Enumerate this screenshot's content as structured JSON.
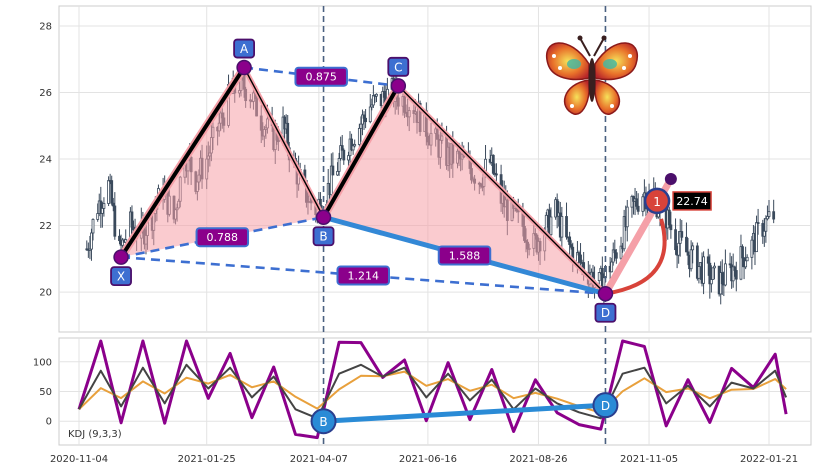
{
  "chart_data": [
    {
      "type": "candlestick",
      "x_tick_labels": [
        "2020-11-04",
        "2021-01-25",
        "2021-04-07",
        "2021-06-16",
        "2021-08-26",
        "2021-11-05",
        "2022-01-21"
      ],
      "y_ticks": [
        20,
        22,
        24,
        26,
        28
      ],
      "ylim": [
        18.8,
        28.6
      ],
      "grid": true,
      "pattern": {
        "points": [
          {
            "name": "X",
            "date": "2020-12-01",
            "value": 21.05
          },
          {
            "name": "A",
            "date": "2021-02-18",
            "value": 26.75
          },
          {
            "name": "B",
            "date": "2021-04-10",
            "value": 22.25
          },
          {
            "name": "C",
            "date": "2021-05-28",
            "value": 26.2
          },
          {
            "name": "D",
            "date": "2021-10-08",
            "value": 19.95
          }
        ],
        "ratios": [
          {
            "label": "0.875",
            "from": "A",
            "to": "C"
          },
          {
            "label": "0.788",
            "from": "X",
            "to": "B"
          },
          {
            "label": "1.214",
            "from": "X",
            "to": "D"
          },
          {
            "label": "1.588",
            "from": "B",
            "to": "D"
          }
        ],
        "target": {
          "marker": "1",
          "value_label": "22.74",
          "date": "2021-11-05",
          "value": 22.74
        },
        "projection_end": {
          "date": "2021-11-19",
          "value": 23.4
        }
      },
      "vertical_markers": [
        "2021-04-10",
        "2021-10-08"
      ],
      "price_path": [
        [
          "2020-11-09",
          21.3
        ],
        [
          "2020-11-16",
          22.6
        ],
        [
          "2020-11-23",
          23.2
        ],
        [
          "2020-11-30",
          21.2
        ],
        [
          "2020-12-07",
          22.0
        ],
        [
          "2020-12-14",
          21.7
        ],
        [
          "2020-12-21",
          22.3
        ],
        [
          "2020-12-28",
          23.1
        ],
        [
          "2021-01-04",
          22.2
        ],
        [
          "2021-01-11",
          24.2
        ],
        [
          "2021-01-18",
          23.4
        ],
        [
          "2021-01-25",
          24.0
        ],
        [
          "2021-02-01",
          24.9
        ],
        [
          "2021-02-08",
          25.8
        ],
        [
          "2021-02-15",
          26.3
        ],
        [
          "2021-02-22",
          26.0
        ],
        [
          "2021-03-01",
          25.2
        ],
        [
          "2021-03-08",
          24.6
        ],
        [
          "2021-03-15",
          25.0
        ],
        [
          "2021-03-22",
          23.8
        ],
        [
          "2021-03-29",
          23.0
        ],
        [
          "2021-04-05",
          22.5
        ],
        [
          "2021-04-12",
          23.0
        ],
        [
          "2021-04-19",
          23.8
        ],
        [
          "2021-04-26",
          24.5
        ],
        [
          "2021-05-03",
          25.0
        ],
        [
          "2021-05-10",
          25.6
        ],
        [
          "2021-05-17",
          25.8
        ],
        [
          "2021-05-24",
          26.0
        ],
        [
          "2021-05-31",
          25.8
        ],
        [
          "2021-06-07",
          25.6
        ],
        [
          "2021-06-14",
          25.0
        ],
        [
          "2021-06-21",
          24.5
        ],
        [
          "2021-06-28",
          24.1
        ],
        [
          "2021-07-05",
          24.0
        ],
        [
          "2021-07-12",
          23.8
        ],
        [
          "2021-07-19",
          23.4
        ],
        [
          "2021-07-26",
          23.9
        ],
        [
          "2021-08-02",
          22.8
        ],
        [
          "2021-08-09",
          22.3
        ],
        [
          "2021-08-16",
          22.0
        ],
        [
          "2021-08-23",
          21.4
        ],
        [
          "2021-08-30",
          21.9
        ],
        [
          "2021-09-06",
          22.4
        ],
        [
          "2021-09-13",
          21.5
        ],
        [
          "2021-09-20",
          21.0
        ],
        [
          "2021-09-27",
          20.6
        ],
        [
          "2021-10-04",
          20.2
        ],
        [
          "2021-10-11",
          20.8
        ],
        [
          "2021-10-18",
          21.6
        ],
        [
          "2021-10-25",
          22.5
        ],
        [
          "2021-11-01",
          23.0
        ],
        [
          "2021-11-08",
          22.8
        ],
        [
          "2021-11-15",
          22.4
        ],
        [
          "2021-11-22",
          21.6
        ],
        [
          "2021-11-29",
          21.2
        ],
        [
          "2021-12-06",
          20.8
        ],
        [
          "2021-12-13",
          20.5
        ],
        [
          "2021-12-20",
          20.3
        ],
        [
          "2021-12-27",
          20.6
        ],
        [
          "2022-01-03",
          21.0
        ],
        [
          "2022-01-10",
          21.4
        ],
        [
          "2022-01-17",
          22.0
        ],
        [
          "2022-01-24",
          22.3
        ]
      ]
    },
    {
      "type": "line",
      "label": "KDJ (9,3,3)",
      "y_ticks": [
        0,
        50,
        100
      ],
      "ylim": [
        -40,
        140
      ],
      "series_colors": {
        "K": "#444444",
        "D": "#e8a03c",
        "J": "#8b008b"
      },
      "k_line": [
        [
          "2020-11-04",
          20
        ],
        [
          "2020-11-18",
          85
        ],
        [
          "2020-12-01",
          25
        ],
        [
          "2020-12-15",
          90
        ],
        [
          "2020-12-29",
          30
        ],
        [
          "2021-01-12",
          95
        ],
        [
          "2021-01-26",
          55
        ],
        [
          "2021-02-09",
          90
        ],
        [
          "2021-02-23",
          40
        ],
        [
          "2021-03-09",
          75
        ],
        [
          "2021-03-23",
          20
        ],
        [
          "2021-04-06",
          5
        ],
        [
          "2021-04-20",
          80
        ],
        [
          "2021-05-04",
          95
        ],
        [
          "2021-05-18",
          75
        ],
        [
          "2021-06-01",
          90
        ],
        [
          "2021-06-15",
          40
        ],
        [
          "2021-06-29",
          80
        ],
        [
          "2021-07-13",
          35
        ],
        [
          "2021-07-27",
          70
        ],
        [
          "2021-08-10",
          20
        ],
        [
          "2021-08-24",
          55
        ],
        [
          "2021-09-07",
          30
        ],
        [
          "2021-09-21",
          15
        ],
        [
          "2021-10-05",
          5
        ],
        [
          "2021-10-19",
          80
        ],
        [
          "2021-11-02",
          90
        ],
        [
          "2021-11-16",
          30
        ],
        [
          "2021-11-30",
          60
        ],
        [
          "2021-12-14",
          25
        ],
        [
          "2021-12-28",
          65
        ],
        [
          "2022-01-11",
          55
        ],
        [
          "2022-01-25",
          85
        ],
        [
          "2022-02-01",
          40
        ]
      ],
      "divergence": {
        "from": "B",
        "from_date": "2021-04-10",
        "from_value": 0,
        "to": "D",
        "to_date": "2021-10-08",
        "to_value": 27
      }
    }
  ]
}
